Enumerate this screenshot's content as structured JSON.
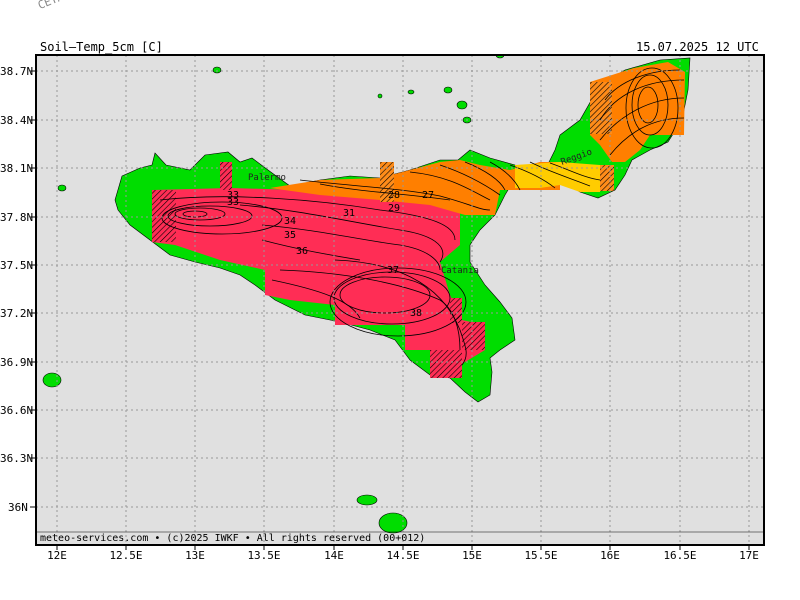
{
  "header": {
    "watermark": "CETA – In",
    "title": "Soil–Temp_5cm [C]",
    "valid_time": "15.07.2025 12 UTC"
  },
  "footer": {
    "credit": "meteo-services.com • (c)2025 IWKF • All rights reserved (00+012)"
  },
  "axes": {
    "lat_labels": [
      "38.7N",
      "38.4N",
      "38.1N",
      "37.8N",
      "37.5N",
      "37.2N",
      "36.9N",
      "36.6N",
      "36.3N",
      "36N"
    ],
    "lon_labels": [
      "12E",
      "12.5E",
      "13E",
      "13.5E",
      "14E",
      "14.5E",
      "15E",
      "15.5E",
      "16E",
      "16.5E",
      "17E"
    ]
  },
  "places": [
    "Palermo",
    "Catania",
    "Reggio"
  ],
  "contour_labels": [
    "33",
    "33",
    "34",
    "35",
    "36",
    "37",
    "38",
    "31",
    "28",
    "29",
    "27"
  ],
  "colors": {
    "land": "#00dd00",
    "sea": "#e0e0e0",
    "hot": "#ff2d55",
    "warm": "#ff7f00",
    "mild": "#ffcc00",
    "grid": "#999999"
  }
}
